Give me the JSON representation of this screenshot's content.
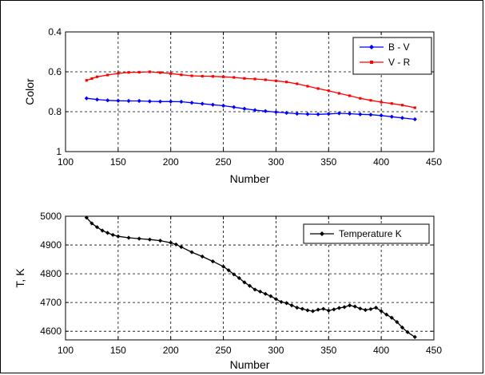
{
  "chart_data": [
    {
      "type": "line",
      "xlabel": "Number",
      "ylabel": "Color",
      "xlim": [
        100,
        450
      ],
      "ylim": [
        1,
        0.4
      ],
      "y_axis_reversed": true,
      "grid": true,
      "legend_position": "top-right",
      "x_ticks": [
        "100",
        "150",
        "200",
        "250",
        "300",
        "350",
        "400",
        "450"
      ],
      "y_ticks": [
        "0.4",
        "0.6",
        "0.8",
        "1"
      ],
      "series": [
        {
          "name": "B - V",
          "color": "#0000ff",
          "marker": "diamond",
          "x": [
            120,
            130,
            140,
            150,
            160,
            170,
            180,
            190,
            200,
            210,
            220,
            230,
            240,
            250,
            260,
            270,
            280,
            290,
            300,
            310,
            320,
            330,
            340,
            350,
            360,
            370,
            380,
            390,
            400,
            410,
            420,
            432
          ],
          "y": [
            0.733,
            0.739,
            0.743,
            0.745,
            0.746,
            0.746,
            0.748,
            0.749,
            0.749,
            0.75,
            0.755,
            0.76,
            0.765,
            0.77,
            0.777,
            0.785,
            0.792,
            0.797,
            0.802,
            0.806,
            0.81,
            0.812,
            0.813,
            0.811,
            0.808,
            0.81,
            0.813,
            0.815,
            0.819,
            0.825,
            0.831,
            0.838
          ]
        },
        {
          "name": "V - R",
          "color": "#ff0000",
          "marker": "square",
          "x": [
            120,
            125,
            130,
            140,
            150,
            160,
            170,
            180,
            190,
            200,
            210,
            220,
            230,
            240,
            250,
            260,
            270,
            280,
            290,
            300,
            310,
            320,
            330,
            340,
            350,
            360,
            370,
            380,
            390,
            400,
            410,
            420,
            432
          ],
          "y": [
            0.643,
            0.634,
            0.625,
            0.616,
            0.608,
            0.603,
            0.602,
            0.6,
            0.604,
            0.609,
            0.615,
            0.62,
            0.622,
            0.623,
            0.625,
            0.628,
            0.633,
            0.636,
            0.64,
            0.645,
            0.651,
            0.66,
            0.672,
            0.684,
            0.695,
            0.708,
            0.72,
            0.733,
            0.743,
            0.752,
            0.759,
            0.767,
            0.78
          ]
        }
      ]
    },
    {
      "type": "line",
      "xlabel": "Number",
      "ylabel": "T, K",
      "xlim": [
        100,
        450
      ],
      "ylim": [
        4570,
        5000
      ],
      "grid": true,
      "legend_position": "top-right",
      "x_ticks": [
        "100",
        "150",
        "200",
        "250",
        "300",
        "350",
        "400",
        "450"
      ],
      "y_ticks": [
        "4600",
        "4700",
        "4800",
        "4900",
        "5000"
      ],
      "series": [
        {
          "name": "Temperature  K",
          "color": "#000000",
          "marker": "diamond",
          "x": [
            120,
            125,
            130,
            135,
            140,
            145,
            150,
            160,
            170,
            180,
            190,
            200,
            205,
            210,
            220,
            230,
            240,
            250,
            255,
            260,
            265,
            270,
            275,
            280,
            285,
            290,
            295,
            300,
            305,
            310,
            315,
            320,
            325,
            330,
            335,
            340,
            345,
            350,
            355,
            360,
            365,
            370,
            375,
            380,
            385,
            390,
            395,
            400,
            405,
            410,
            415,
            420,
            425,
            432
          ],
          "y": [
            4995,
            4975,
            4962,
            4950,
            4942,
            4935,
            4930,
            4925,
            4922,
            4919,
            4915,
            4908,
            4902,
            4893,
            4875,
            4860,
            4843,
            4825,
            4812,
            4798,
            4785,
            4770,
            4758,
            4745,
            4738,
            4730,
            4722,
            4712,
            4702,
            4698,
            4690,
            4682,
            4678,
            4673,
            4670,
            4675,
            4678,
            4672,
            4676,
            4681,
            4684,
            4690,
            4686,
            4679,
            4674,
            4677,
            4682,
            4670,
            4658,
            4647,
            4632,
            4613,
            4597,
            4580
          ]
        }
      ]
    }
  ]
}
